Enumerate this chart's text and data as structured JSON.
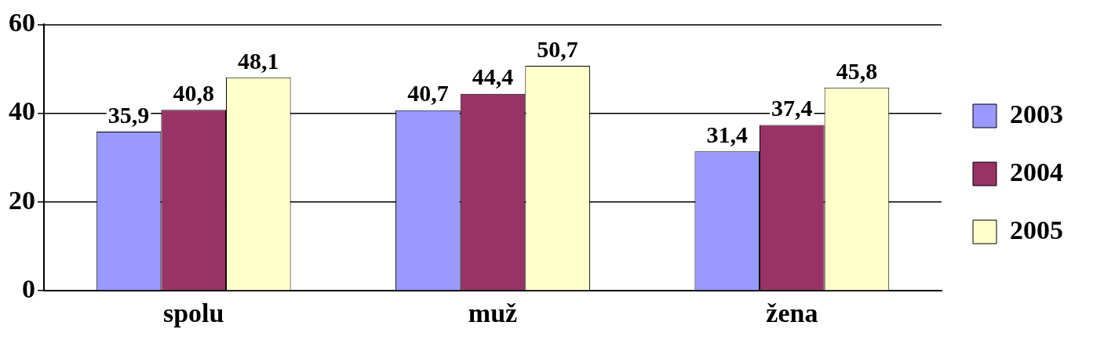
{
  "chart_data": {
    "type": "bar",
    "categories": [
      "spolu",
      "muž",
      "žena"
    ],
    "series": [
      {
        "name": "2003",
        "color": "#9999ff",
        "values": [
          35.9,
          40.7,
          31.4
        ],
        "value_labels": [
          "35,9",
          "40,7",
          "31,4"
        ]
      },
      {
        "name": "2004",
        "color": "#993366",
        "values": [
          40.8,
          44.4,
          37.4
        ],
        "value_labels": [
          "40,8",
          "44,4",
          "37,4"
        ]
      },
      {
        "name": "2005",
        "color": "#ffffcc",
        "values": [
          48.1,
          50.7,
          45.8
        ],
        "value_labels": [
          "48,1",
          "50,7",
          "45,8"
        ]
      }
    ],
    "ylim": [
      0,
      60
    ],
    "yticks": [
      0,
      20,
      40,
      60
    ],
    "grid": "y",
    "legend": "right"
  }
}
